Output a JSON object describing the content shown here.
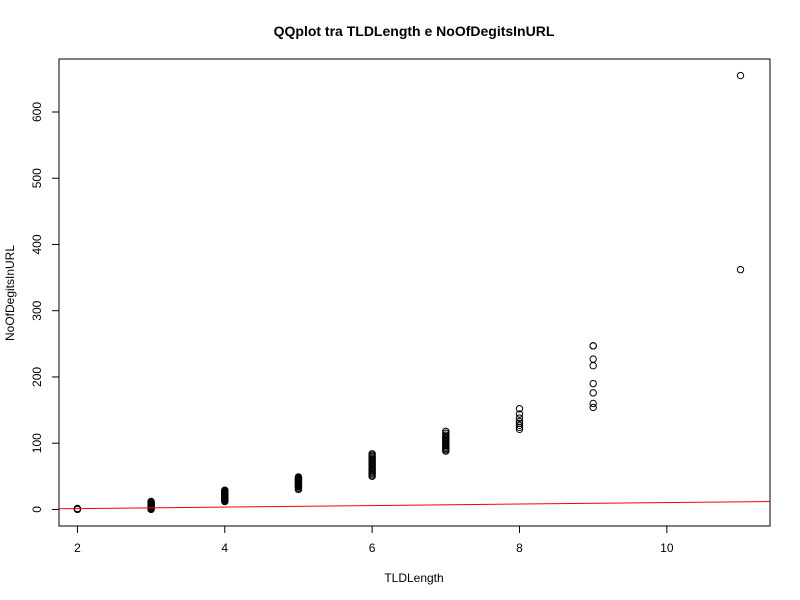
{
  "chart_data": {
    "type": "scatter",
    "title": "QQplot tra TLDLength e NoOfDegitsInURL",
    "xlabel": "TLDLength",
    "ylabel": "NoOfDegitsInURL",
    "xlim": [
      1.75,
      11.4
    ],
    "ylim": [
      -25,
      680
    ],
    "x_ticks": [
      2,
      4,
      6,
      8,
      10
    ],
    "y_ticks": [
      0,
      100,
      200,
      300,
      400,
      500,
      600
    ],
    "grid": false,
    "legend": "none",
    "point_color": "#000000",
    "series": [
      {
        "x": [
          2,
          2,
          2,
          2,
          3,
          3,
          3,
          3,
          3,
          3,
          3,
          3,
          3,
          3,
          3,
          3,
          3,
          4,
          4,
          4,
          4,
          4,
          4,
          4,
          4,
          4,
          4,
          4,
          4,
          4,
          4,
          4,
          4,
          4,
          4,
          5,
          5,
          5,
          5,
          5,
          5,
          5,
          5,
          5,
          5,
          5,
          5,
          5,
          5,
          5,
          5,
          5,
          5,
          6,
          6,
          6,
          6,
          6,
          6,
          6,
          6,
          6,
          6,
          6,
          6,
          6,
          6,
          6,
          6,
          6,
          6,
          7,
          7,
          7,
          7,
          7,
          7,
          7,
          7,
          7,
          7,
          7,
          7,
          7,
          7,
          7,
          8,
          8,
          8,
          8,
          8,
          8,
          8,
          8,
          9,
          9,
          9,
          9,
          9,
          9,
          9,
          9,
          11,
          11
        ],
        "y": [
          0,
          0.5,
          1,
          1.5,
          0,
          1,
          2,
          3,
          4,
          5,
          6,
          7,
          8,
          9,
          10,
          11,
          12,
          12,
          13,
          14,
          15,
          16,
          17,
          18,
          19,
          20,
          21,
          22,
          23,
          24,
          25,
          26,
          27,
          28,
          29,
          30,
          32,
          34,
          35,
          36,
          37,
          38,
          39,
          40,
          41,
          42,
          43,
          44,
          45,
          46,
          47,
          48,
          49,
          50,
          52,
          54,
          56,
          58,
          60,
          62,
          64,
          66,
          68,
          70,
          72,
          74,
          76,
          78,
          80,
          82,
          84,
          88,
          90,
          92,
          94,
          96,
          98,
          100,
          102,
          104,
          106,
          108,
          110,
          112,
          115,
          118,
          121,
          124,
          127,
          130,
          133,
          138,
          144,
          152,
          154,
          160,
          176,
          190,
          217,
          227,
          247,
          247,
          362,
          655
        ]
      }
    ],
    "reference_line": {
      "color": "#ff0000",
      "from": [
        1.75,
        1
      ],
      "to": [
        11.4,
        12
      ]
    }
  }
}
